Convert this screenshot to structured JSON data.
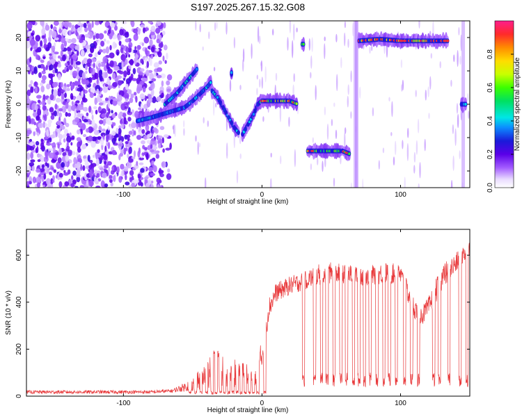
{
  "figure": {
    "title": "S197.2025.267.15.32.G08"
  },
  "chart_data": [
    {
      "type": "heatmap",
      "xlabel": "Height of straight line (km)",
      "ylabel": "Frequency (Hz)",
      "xlim": [
        -170,
        150
      ],
      "ylim": [
        -25,
        25
      ],
      "xticks": [
        -100,
        0,
        100
      ],
      "yticks": [
        -20,
        -10,
        0,
        10,
        20
      ],
      "colorbar": {
        "label": "Normalized spectral amplitude",
        "range": [
          0,
          1
        ],
        "ticks": [
          0.0,
          0.2,
          0.4,
          0.6,
          0.8
        ],
        "tick_labels": [
          "0.0",
          "0.2",
          "0.4",
          "0.6",
          "0.8"
        ]
      },
      "noise_region_x": [
        -170,
        -65
      ],
      "tracks": [
        {
          "name": "rising-upper",
          "points": [
            [
              -70,
              0
            ],
            [
              -62,
              3
            ],
            [
              -56,
              6
            ],
            [
              -50,
              9
            ],
            [
              -46,
              11
            ]
          ],
          "amp": 0.45
        },
        {
          "name": "rising-lower",
          "points": [
            [
              -90,
              -5
            ],
            [
              -80,
              -4
            ],
            [
              -72,
              -3
            ],
            [
              -64,
              -2
            ],
            [
              -56,
              -1
            ],
            [
              -50,
              1
            ],
            [
              -45,
              3
            ],
            [
              -40,
              5
            ],
            [
              -36,
              7
            ]
          ],
          "amp": 0.4
        },
        {
          "name": "descent",
          "points": [
            [
              -36,
              4
            ],
            [
              -32,
              2
            ],
            [
              -28,
              -1
            ],
            [
              -24,
              -4
            ],
            [
              -20,
              -7
            ],
            [
              -16,
              -9
            ]
          ],
          "amp": 0.42
        },
        {
          "name": "ascent",
          "points": [
            [
              -14,
              -9
            ],
            [
              -10,
              -6
            ],
            [
              -6,
              -3
            ],
            [
              -3,
              0
            ],
            [
              0,
              1
            ]
          ],
          "amp": 0.48
        },
        {
          "name": "spike-a",
          "points": [
            [
              -22,
              9
            ],
            [
              -22,
              10
            ]
          ],
          "amp": 0.45
        },
        {
          "name": "flat-zero",
          "points": [
            [
              0,
              1
            ],
            [
              10,
              1
            ],
            [
              20,
              1
            ],
            [
              26,
              0
            ]
          ],
          "amp": 0.75
        },
        {
          "name": "spike-b",
          "points": [
            [
              29,
              18
            ],
            [
              31,
              18
            ]
          ],
          "amp": 0.6
        },
        {
          "name": "flat-minus14",
          "points": [
            [
              33,
              -14
            ],
            [
              45,
              -14
            ],
            [
              58,
              -14
            ],
            [
              64,
              -15
            ]
          ],
          "amp": 0.62
        },
        {
          "name": "flat-plus19",
          "points": [
            [
              70,
              19
            ],
            [
              85,
              19.5
            ],
            [
              100,
              19
            ],
            [
              115,
              19
            ],
            [
              135,
              19
            ]
          ],
          "amp": 0.85
        },
        {
          "name": "edge-tail",
          "points": [
            [
              144,
              0
            ],
            [
              148,
              0
            ]
          ],
          "amp": 0.5
        }
      ]
    },
    {
      "type": "line",
      "xlabel": "Height of straight line (km)",
      "ylabel": "SNR (10 * v/v)",
      "xlim": [
        -170,
        150
      ],
      "ylim": [
        0,
        710
      ],
      "xticks": [
        -100,
        0,
        100
      ],
      "yticks": [
        0,
        200,
        400,
        600
      ],
      "series": [
        {
          "name": "SNR",
          "color": "#e8383a",
          "envelope": {
            "x": [
              -170,
              -80,
              -65,
              -55,
              -45,
              -40,
              -35,
              -30,
              -25,
              -20,
              -15,
              -10,
              -5,
              0,
              5,
              10,
              20,
              30,
              40,
              50,
              60,
              70,
              80,
              90,
              100,
              110,
              115,
              120,
              130,
              140,
              150
            ],
            "upper": [
              25,
              25,
              30,
              60,
              110,
              160,
              220,
              180,
              170,
              160,
              150,
              140,
              100,
              250,
              420,
              480,
              510,
              530,
              560,
              570,
              560,
              560,
              560,
              570,
              560,
              420,
              380,
              420,
              560,
              610,
              670
            ],
            "lower": [
              10,
              10,
              15,
              20,
              25,
              30,
              40,
              40,
              40,
              35,
              30,
              25,
              20,
              100,
              330,
              400,
              430,
              450,
              470,
              480,
              480,
              470,
              470,
              480,
              470,
              330,
              300,
              330,
              450,
              520,
              600
            ]
          },
          "dropouts_x": [
            -52,
            -48,
            -44,
            -40,
            -36,
            -33,
            -30,
            -27,
            -24,
            -21,
            -18,
            -15,
            -12,
            -9,
            -6,
            -3,
            2,
            30,
            38,
            43,
            47,
            52,
            57,
            61,
            66,
            70,
            74,
            78,
            83,
            88,
            92,
            97,
            103,
            108,
            113,
            124,
            128,
            135,
            143,
            148
          ]
        }
      ]
    }
  ]
}
